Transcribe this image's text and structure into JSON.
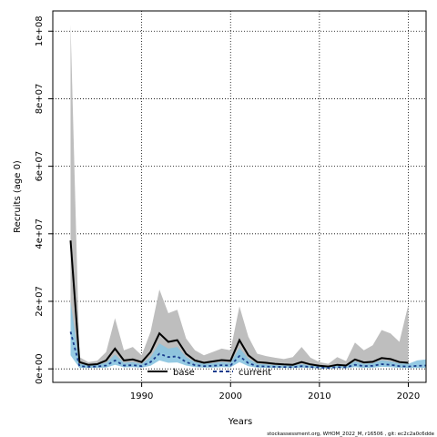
{
  "chart_data": {
    "type": "line",
    "xlabel": "Years",
    "ylabel": "Recruits (age 0)",
    "xlim": [
      1980,
      2022
    ],
    "ylim": [
      -4000000,
      106000000
    ],
    "x_ticks": [
      1990,
      2000,
      2010,
      2020
    ],
    "y_ticks": [
      0,
      20000000,
      40000000,
      60000000,
      80000000,
      100000000
    ],
    "y_tick_labels": [
      "0e+00",
      "2e+07",
      "4e+07",
      "6e+07",
      "8e+07",
      "1e+08"
    ],
    "grid": true,
    "legend_position": "bottom-center",
    "footer_text": "stockassessment.org, WHOM_2022_M, r16506 , git: ec2c2a0c6dde",
    "colors": {
      "base_band": "#bebebe",
      "current_band": "#89c4e0",
      "base_line": "#000000",
      "current_line": "#1a3c8c"
    },
    "series": [
      {
        "name": "base",
        "style": "solid",
        "x": [
          1982,
          1983,
          1984,
          1985,
          1986,
          1987,
          1988,
          1989,
          1990,
          1991,
          1992,
          1993,
          1994,
          1995,
          1996,
          1997,
          1998,
          1999,
          2000,
          2001,
          2002,
          2003,
          2004,
          2005,
          2006,
          2007,
          2008,
          2009,
          2010,
          2011,
          2012,
          2013,
          2014,
          2015,
          2016,
          2017,
          2018,
          2019,
          2020
        ],
        "y": [
          38000000,
          2000000,
          1200000,
          1400000,
          2500000,
          6000000,
          2500000,
          2800000,
          2000000,
          5000000,
          10500000,
          8000000,
          8500000,
          4500000,
          2500000,
          1800000,
          2200000,
          2600000,
          2400000,
          8500000,
          4000000,
          2000000,
          1800000,
          1500000,
          1300000,
          1200000,
          2000000,
          1300000,
          900000,
          700000,
          1200000,
          1000000,
          2800000,
          1900000,
          2100000,
          3200000,
          2900000,
          2000000,
          1800000
        ],
        "upper": [
          102000000,
          3500000,
          2000000,
          2400000,
          5000000,
          15000000,
          5500000,
          6500000,
          4000000,
          11000000,
          23500000,
          16500000,
          17500000,
          9000000,
          5500000,
          4000000,
          5000000,
          6000000,
          5500000,
          18500000,
          9500000,
          4500000,
          3800000,
          3300000,
          2900000,
          3500000,
          6500000,
          3300000,
          2000000,
          1500000,
          3500000,
          2300000,
          7800000,
          5500000,
          7000000,
          11500000,
          10500000,
          8000000,
          19000000
        ],
        "lower": [
          16000000,
          800000,
          500000,
          700000,
          1200000,
          2500000,
          1100000,
          1200000,
          900000,
          2000000,
          5000000,
          4000000,
          4000000,
          2200000,
          1200000,
          900000,
          1000000,
          1200000,
          1100000,
          4000000,
          1800000,
          900000,
          800000,
          700000,
          600000,
          500000,
          800000,
          500000,
          400000,
          300000,
          400000,
          400000,
          1000000,
          700000,
          700000,
          1000000,
          900000,
          600000,
          300000
        ]
      },
      {
        "name": "current",
        "style": "dashed",
        "x": [
          1982,
          1983,
          1984,
          1985,
          1986,
          1987,
          1988,
          1989,
          1990,
          1991,
          1992,
          1993,
          1994,
          1995,
          1996,
          1997,
          1998,
          1999,
          2000,
          2001,
          2002,
          2003,
          2004,
          2005,
          2006,
          2007,
          2008,
          2009,
          2010,
          2011,
          2012,
          2013,
          2014,
          2015,
          2016,
          2017,
          2018,
          2019,
          2020,
          2021,
          2022
        ],
        "y": [
          11000000,
          800000,
          600000,
          700000,
          1000000,
          2500000,
          1000000,
          1100000,
          800000,
          2000000,
          4500000,
          3500000,
          3700000,
          2000000,
          1100000,
          800000,
          900000,
          1100000,
          1000000,
          3800000,
          1700000,
          800000,
          700000,
          600000,
          550000,
          500000,
          800000,
          550000,
          400000,
          300000,
          500000,
          450000,
          1200000,
          800000,
          900000,
          1400000,
          1200000,
          800000,
          700000,
          900000,
          1000000
        ],
        "upper": [
          20000000,
          1500000,
          1100000,
          1300000,
          1800000,
          4200000,
          1800000,
          2000000,
          1500000,
          3500000,
          7500000,
          6000000,
          6500000,
          3500000,
          2000000,
          1500000,
          1700000,
          2000000,
          1800000,
          6200000,
          3000000,
          1500000,
          1300000,
          1100000,
          1000000,
          950000,
          1400000,
          1000000,
          800000,
          600000,
          1000000,
          900000,
          2200000,
          1500000,
          1700000,
          2500000,
          2200000,
          1600000,
          1500000,
          2500000,
          2800000
        ],
        "lower": [
          4000000,
          300000,
          250000,
          300000,
          400000,
          1200000,
          450000,
          500000,
          350000,
          900000,
          2500000,
          1800000,
          1900000,
          1000000,
          500000,
          350000,
          400000,
          500000,
          450000,
          2000000,
          800000,
          350000,
          300000,
          250000,
          220000,
          200000,
          350000,
          220000,
          150000,
          120000,
          200000,
          180000,
          500000,
          300000,
          350000,
          600000,
          500000,
          300000,
          250000,
          250000,
          300000
        ]
      }
    ]
  }
}
